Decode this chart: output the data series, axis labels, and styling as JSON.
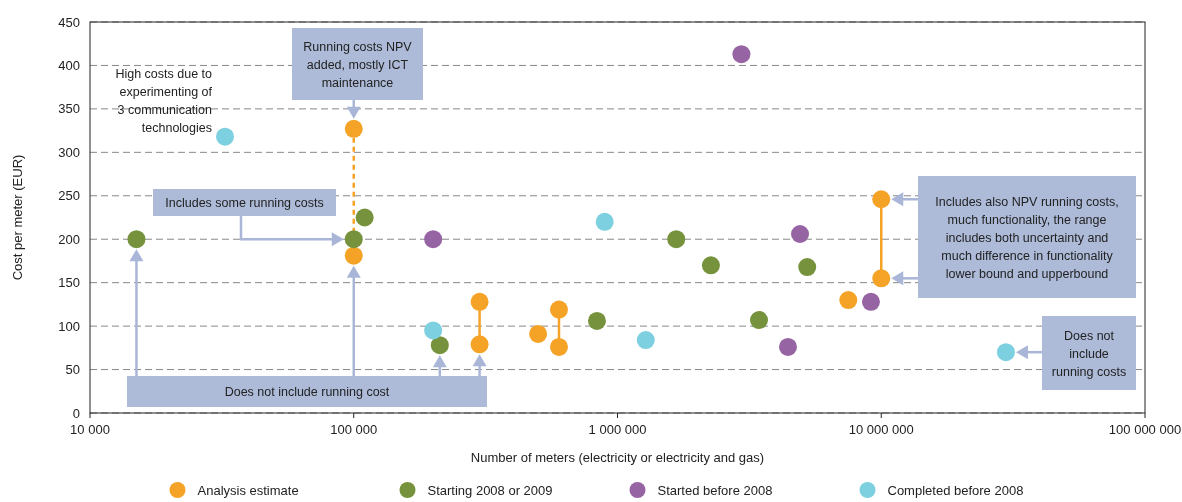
{
  "chart_data": {
    "type": "scatter",
    "xlabel": "Number of meters (electricity or electricity and gas)",
    "ylabel": "Cost per meter (EUR)",
    "log": "x",
    "xlim": [
      10000,
      100000000
    ],
    "xticks": [
      {
        "value": 10000,
        "label": "10 000"
      },
      {
        "value": 100000,
        "label": "100 000"
      },
      {
        "value": 1000000,
        "label": "1 000 000"
      },
      {
        "value": 10000000,
        "label": "10 000 000"
      },
      {
        "value": 100000000,
        "label": "100 000 000"
      }
    ],
    "ylim": [
      0,
      450
    ],
    "yticks": [
      0,
      50,
      100,
      150,
      200,
      250,
      300,
      350,
      400,
      450
    ],
    "grid": "y",
    "legend": "bottom",
    "marker": "circle",
    "series": [
      {
        "name": "Analysis estimate",
        "color": "#f5a327",
        "x": [
          100000,
          100000,
          300000,
          300000,
          500000,
          600000,
          600000,
          7500000,
          10000000,
          10000000
        ],
        "values": [
          327,
          181,
          128,
          79,
          91,
          119,
          76,
          130,
          246,
          155
        ]
      },
      {
        "name": "Starting 2008 or 2009",
        "color": "#76923c",
        "x": [
          15000,
          100000,
          110000,
          212000,
          836000,
          1670000,
          2260000,
          3440000,
          5240000
        ],
        "values": [
          200,
          200,
          225,
          78,
          106,
          200,
          170,
          107,
          168
        ]
      },
      {
        "name": "Started before 2008",
        "color": "#9663a3",
        "x": [
          200000,
          2950000,
          4430000,
          4920000,
          9140000
        ],
        "values": [
          200,
          413,
          76,
          206,
          128
        ]
      },
      {
        "name": "Completed before 2008",
        "color": "#7dd0e0",
        "x": [
          32500,
          200000,
          894000,
          1280000,
          29700000
        ],
        "values": [
          318,
          95,
          220,
          84,
          70
        ]
      },
      {
        "type": "line",
        "color": "#f5a327",
        "line_style": "dashed",
        "marker": "none",
        "x": [
          100000,
          100000
        ],
        "values": [
          327,
          181
        ]
      },
      {
        "type": "line",
        "color": "#f5a327",
        "line_style": "solid",
        "marker": "none",
        "x": [
          300000,
          300000
        ],
        "values": [
          128,
          79
        ]
      },
      {
        "type": "line",
        "color": "#f5a327",
        "line_style": "solid",
        "marker": "none",
        "x": [
          600000,
          600000
        ],
        "values": [
          119,
          76
        ]
      },
      {
        "type": "line",
        "color": "#f5a327",
        "line_style": "solid",
        "marker": "none",
        "x": [
          10000000,
          10000000
        ],
        "values": [
          246,
          155
        ]
      }
    ],
    "annotations": [
      "High costs due to experimenting of 3 communication technologies",
      "Running costs NPV added, mostly ICT maintenance",
      "Includes some running costs",
      "Does not include running cost",
      "Includes also NPV running costs, much functionality, the range includes both uncertainty and much difference in functionality lower bound and upperbound",
      "Does not include running costs"
    ]
  }
}
